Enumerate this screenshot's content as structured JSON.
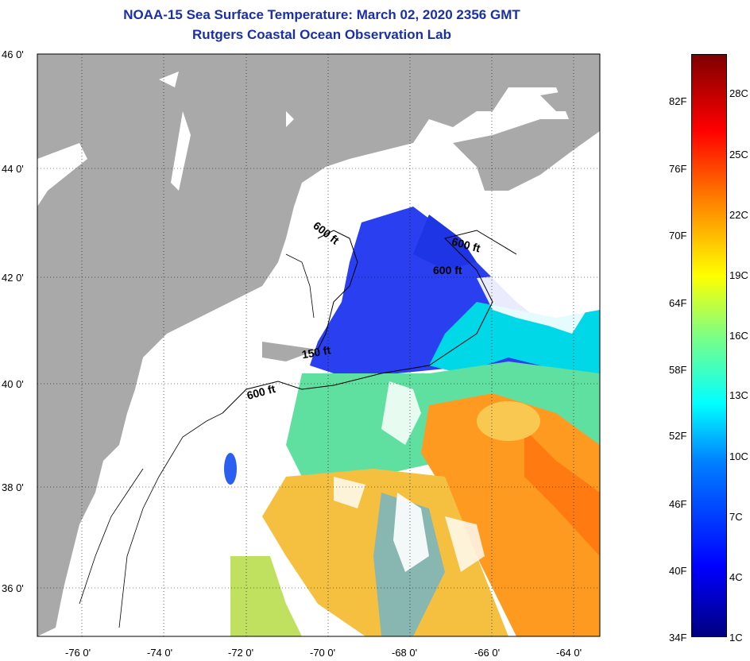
{
  "title_line1": "NOAA-15 Sea Surface Temperature:  March 02, 2020 2356 GMT",
  "title_line2": "Rutgers Coastal Ocean Observation Lab",
  "lat_labels": [
    "46 0'",
    "44 0'",
    "42 0'",
    "40 0'",
    "38 0'",
    "36 0'"
  ],
  "lon_labels": [
    "-76 0'",
    "-74 0'",
    "-72 0'",
    "-70 0'",
    "-68 0'",
    "-66 0'",
    "-64 0'"
  ],
  "contour_labels": [
    "600 ft",
    "600 ft",
    "600 ft",
    "150 ft",
    "600 ft"
  ],
  "colorbar_f": [
    "82F",
    "76F",
    "70F",
    "64F",
    "58F",
    "52F",
    "46F",
    "40F",
    "34F"
  ],
  "colorbar_c": [
    "28C",
    "25C",
    "22C",
    "19C",
    "16C",
    "13C",
    "10C",
    "7C",
    "4C",
    "1C"
  ],
  "colors": {
    "land": "#a9a9a9",
    "title": "#1a2fa8"
  }
}
